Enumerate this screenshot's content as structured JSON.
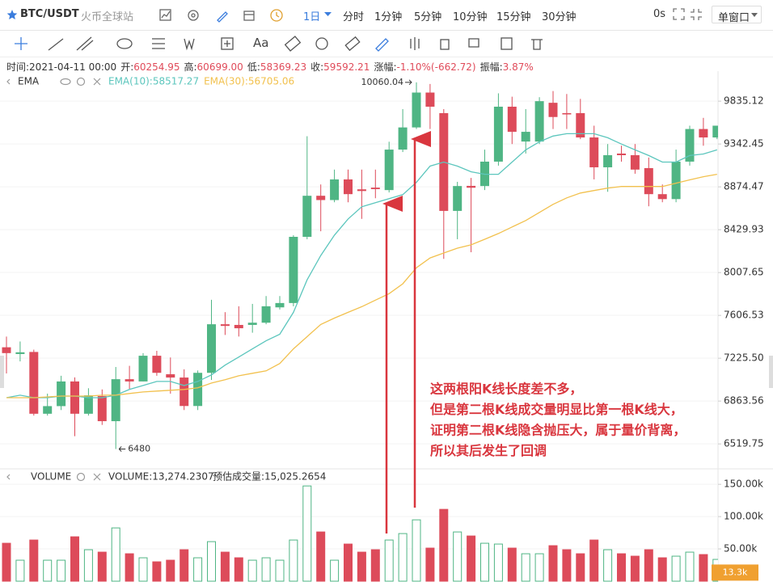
{
  "toolbar": {
    "symbol": "BTC/USDT",
    "exchange": "火币全球站",
    "interval": "1日",
    "intervals": [
      "分时",
      "1分钟",
      "5分钟",
      "10分钟",
      "15分钟",
      "30分钟"
    ],
    "timer": "0s",
    "window": "单窗口",
    "text_tool": "Aa"
  },
  "info": [
    [
      "时间:",
      "2021-04-11 00:00"
    ],
    [
      "开:",
      "60254.95"
    ],
    [
      "高:",
      "60699.00"
    ],
    [
      "低:",
      "58369.23"
    ],
    [
      "收:",
      "59592.21"
    ],
    [
      "涨幅:",
      "-1.10%(-662.72)"
    ],
    [
      "振幅:",
      "3.87%"
    ]
  ],
  "chart_data": {
    "type": "candlestick",
    "indicator": "EMA",
    "log_scale": true,
    "grid": true,
    "up_color": "#4fb584",
    "down_color": "#dd4b5a",
    "ylim": [
      6340,
      10176
    ],
    "yticks": [
      9835.12,
      9342.45,
      8874.47,
      8429.93,
      8007.65,
      7606.53,
      {
        "value": 7225.5,
        "label": "7225.50"
      },
      6863.56,
      6519.75
    ],
    "open": [
      7321,
      7262,
      7280,
      6760,
      6822,
      7027,
      6760,
      6905,
      6700,
      7046,
      7027,
      7247,
      7088,
      7060,
      6823,
      7100,
      7526,
      7520,
      7520,
      7540,
      7680,
      7720,
      8358,
      8780,
      8735,
      8954,
      8848,
      8866,
      8840,
      9280,
      9530,
      9937,
      9695,
      8622,
      8885,
      8883,
      9147,
      9770,
      9370,
      9370,
      9816,
      9695,
      9695,
      9416,
      9085,
      9236,
      9218,
      9076,
      8797,
      8745,
      9147,
      9512,
      9416
    ],
    "high": [
      7416,
      7372,
      7300,
      6925,
      7075,
      7061,
      6970,
      6960,
      7150,
      7160,
      7270,
      7290,
      7232,
      7130,
      7120,
      7750,
      7636,
      7690,
      7712,
      7785,
      7785,
      8374,
      9430,
      8900,
      9060,
      9060,
      9060,
      9060,
      9368,
      9742,
      10060.04,
      10040,
      9742,
      8928,
      8970,
      9280,
      9928,
      9888,
      9742,
      9882,
      9955,
      9920,
      9862,
      9550,
      9342,
      9323,
      9342,
      9192,
      8900,
      9280,
      9550,
      9640,
      9550
    ],
    "low": [
      7095,
      7198,
      6745,
      6745,
      6790,
      6580,
      6745,
      6670,
      6480,
      6965,
      7027,
      7075,
      6925,
      6790,
      6790,
      7040,
      7430,
      7416,
      7450,
      7526,
      7660,
      7690,
      8334,
      8414,
      8712,
      8712,
      8540,
      8754,
      8815,
      9253,
      9512,
      9512,
      8140,
      8334,
      8205,
      8840,
      9103,
      9342,
      9236,
      9342,
      9512,
      9512,
      9397,
      8954,
      8822,
      9147,
      9015,
      8670,
      8712,
      8712,
      9103,
      9323,
      9397
    ],
    "close": [
      7270,
      7277,
      6760,
      6822,
      7027,
      6760,
      6911,
      6700,
      7046,
      7027,
      7247,
      7100,
      7060,
      6823,
      7100,
      7526,
      7511,
      7490,
      7540,
      7690,
      7720,
      8358,
      8780,
      8735,
      8954,
      8797,
      8830,
      8850,
      9280,
      9530,
      9937,
      9770,
      8622,
      8883,
      8865,
      9147,
      9770,
      9480,
      9480,
      9835,
      9650,
      9680,
      9416,
      9085,
      9218,
      9218,
      9060,
      8797,
      8745,
      9147,
      9512,
      9416,
      9550
    ],
    "series": [
      {
        "name": "EMA(10):58517.27",
        "color": "#5cc6bd",
        "values": [
          6891,
          6912,
          6891,
          6891,
          6905,
          6905,
          6891,
          6891,
          6912,
          6960,
          6993,
          7027,
          7027,
          6993,
          7027,
          7082,
          7166,
          7236,
          7307,
          7378,
          7436,
          7634,
          7938,
          8173,
          8375,
          8539,
          8665,
          8707,
          8749,
          8792,
          8922,
          9098,
          9142,
          9098,
          9036,
          9009,
          9009,
          9142,
          9277,
          9367,
          9432,
          9459,
          9459,
          9459,
          9413,
          9342,
          9277,
          9214,
          9142,
          9142,
          9214,
          9231,
          9277
        ]
      },
      {
        "name": "EMA(30):56705.06",
        "color": "#f2c14e",
        "values": [
          6891,
          6891,
          6891,
          6898,
          6905,
          6905,
          6905,
          6912,
          6912,
          6926,
          6939,
          6946,
          6953,
          6960,
          6973,
          7013,
          7041,
          7075,
          7096,
          7117,
          7180,
          7307,
          7415,
          7524,
          7582,
          7634,
          7686,
          7747,
          7807,
          7900,
          8054,
          8149,
          8197,
          8245,
          8278,
          8334,
          8391,
          8457,
          8523,
          8606,
          8690,
          8758,
          8809,
          8835,
          8861,
          8878,
          8878,
          8878,
          8878,
          8914,
          8949,
          8983,
          9009
        ]
      }
    ],
    "annotations": [
      "这两根阳K线长度差不多，",
      "但是第二根K线成交量明显比第一根K线大，",
      "证明第二根K线隐含抛压大，属于量价背离，",
      "所以其后发生了回调"
    ],
    "volume_panel": {
      "title": "VOLUME",
      "reading": "VOLUME:13,274.2307",
      "estimate": "预估成交量:15,025.2654",
      "ylim": [
        0,
        174000
      ],
      "yticks": [
        {
          "value": 150000,
          "label": "150.00k"
        },
        {
          "value": 100000,
          "label": "100.00k"
        },
        {
          "value": 50000,
          "label": "50.00k"
        }
      ],
      "badge": {
        "value": 13300,
        "label": "13.3k"
      },
      "badge_color": "#f0a030"
    },
    "volume": [
      58750,
      32500,
      63750,
      32500,
      32500,
      68750,
      48750,
      45000,
      82500,
      42500,
      36250,
      30000,
      32500,
      48750,
      36250,
      61250,
      45000,
      36250,
      32500,
      36250,
      32500,
      63750,
      147500,
      76250,
      32500,
      57500,
      45000,
      48750,
      63750,
      73750,
      95000,
      51250,
      111250,
      76250,
      70000,
      58750,
      57500,
      51250,
      42500,
      42500,
      55000,
      48750,
      42500,
      63750,
      48750,
      42500,
      38750,
      48750,
      36250,
      38750,
      45000,
      41250,
      33750
    ]
  }
}
